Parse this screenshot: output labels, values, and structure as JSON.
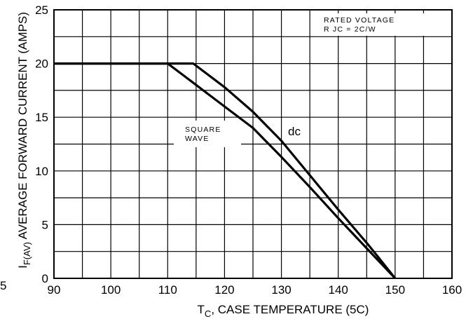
{
  "chart_data": {
    "type": "line",
    "xlabel_main": "T",
    "xlabel_sub": "C",
    "xlabel_rest": ", CASE TEMPERATURE (5C)",
    "ylabel_main": "I",
    "ylabel_sub": "F(AV)",
    "ylabel_rest": " AVERAGE FORWARD CURRENT (AMPS)",
    "xlim": [
      90,
      160
    ],
    "ylim": [
      0,
      25
    ],
    "x_ticks": [
      90,
      100,
      110,
      120,
      130,
      140,
      150,
      160
    ],
    "y_ticks": [
      0,
      5,
      10,
      15,
      20,
      25
    ],
    "grid": true,
    "series": [
      {
        "name": "dc",
        "x": [
          90,
          114.5,
          120,
          125,
          130,
          135,
          140,
          145,
          147,
          150
        ],
        "y": [
          20,
          20,
          17.8,
          15.5,
          12.8,
          9.6,
          6.4,
          3.3,
          2,
          0
        ]
      },
      {
        "name": "SQUARE WAVE",
        "x": [
          90,
          110,
          115,
          120,
          125,
          130,
          135,
          140,
          145,
          150
        ],
        "y": [
          20,
          20,
          18,
          16,
          14,
          11.3,
          8.5,
          5.6,
          2.8,
          0
        ]
      }
    ],
    "annotations": {
      "dc_label": "dc",
      "square_line1": "SQUARE",
      "square_line2": "WAVE",
      "rated_line1": "RATED  VOLTAGE",
      "rated_line2": "R  JC  =  2C/W"
    },
    "stray_left_tick": "5"
  }
}
